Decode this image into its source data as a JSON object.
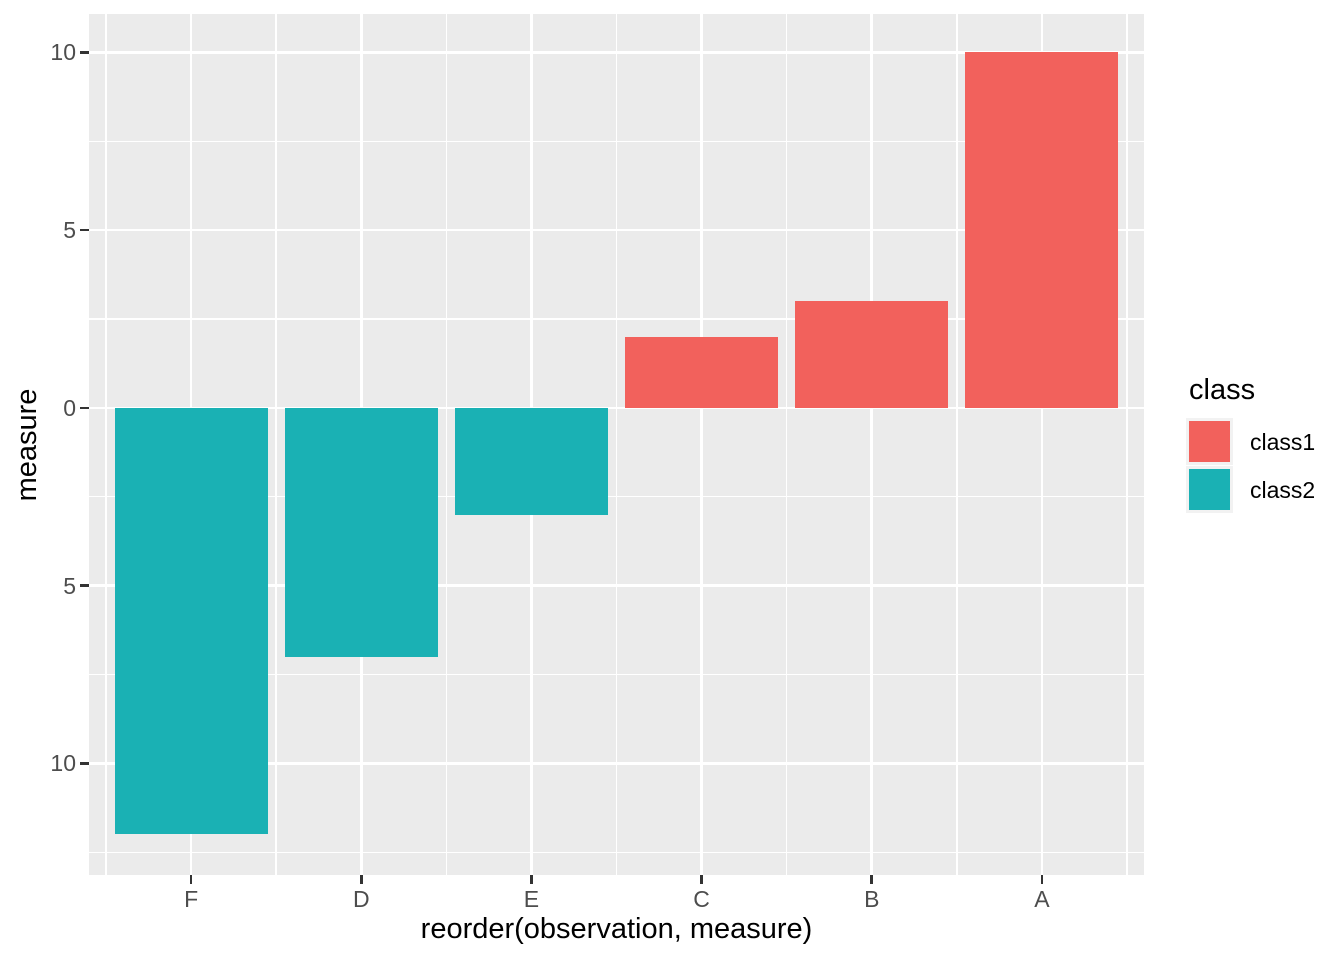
{
  "chart_data": {
    "type": "bar",
    "title": "",
    "xlabel": "reorder(observation, measure)",
    "ylabel": "measure",
    "categories": [
      "F",
      "D",
      "E",
      "C",
      "B",
      "A"
    ],
    "values": [
      -12,
      -7,
      -3,
      2,
      3,
      10
    ],
    "classes": [
      "class2",
      "class2",
      "class2",
      "class1",
      "class1",
      "class1"
    ],
    "series": [
      {
        "name": "class1",
        "observations": [
          "C",
          "B",
          "A"
        ],
        "values": [
          2,
          3,
          10
        ]
      },
      {
        "name": "class2",
        "observations": [
          "F",
          "D",
          "E"
        ],
        "values": [
          -12,
          -7,
          -3
        ]
      }
    ],
    "bar_width_fraction": 0.9,
    "xlim": [
      0.4,
      6.6
    ],
    "ylim": [
      -13.14,
      11.08
    ],
    "y_major_ticks": [
      10,
      5,
      0,
      -5,
      -10
    ],
    "y_tick_labels": [
      "10",
      "5",
      "0",
      "5",
      "10"
    ],
    "y_minor_ticks": [
      7.5,
      2.5,
      -2.5,
      -7.5,
      -12.5
    ],
    "grid": true,
    "legend": {
      "title": "class",
      "position": "right",
      "items": [
        {
          "label": "class1",
          "color": "#F2615C"
        },
        {
          "label": "class2",
          "color": "#1AB1B4"
        }
      ]
    },
    "colors": {
      "class1": "#F2615C",
      "class2": "#1AB1B4",
      "panel_bg": "#EBEBEB",
      "grid": "#FFFFFF",
      "tick": "#333333",
      "tick_label": "#4D4D4D",
      "axis_title": "#000000"
    }
  }
}
